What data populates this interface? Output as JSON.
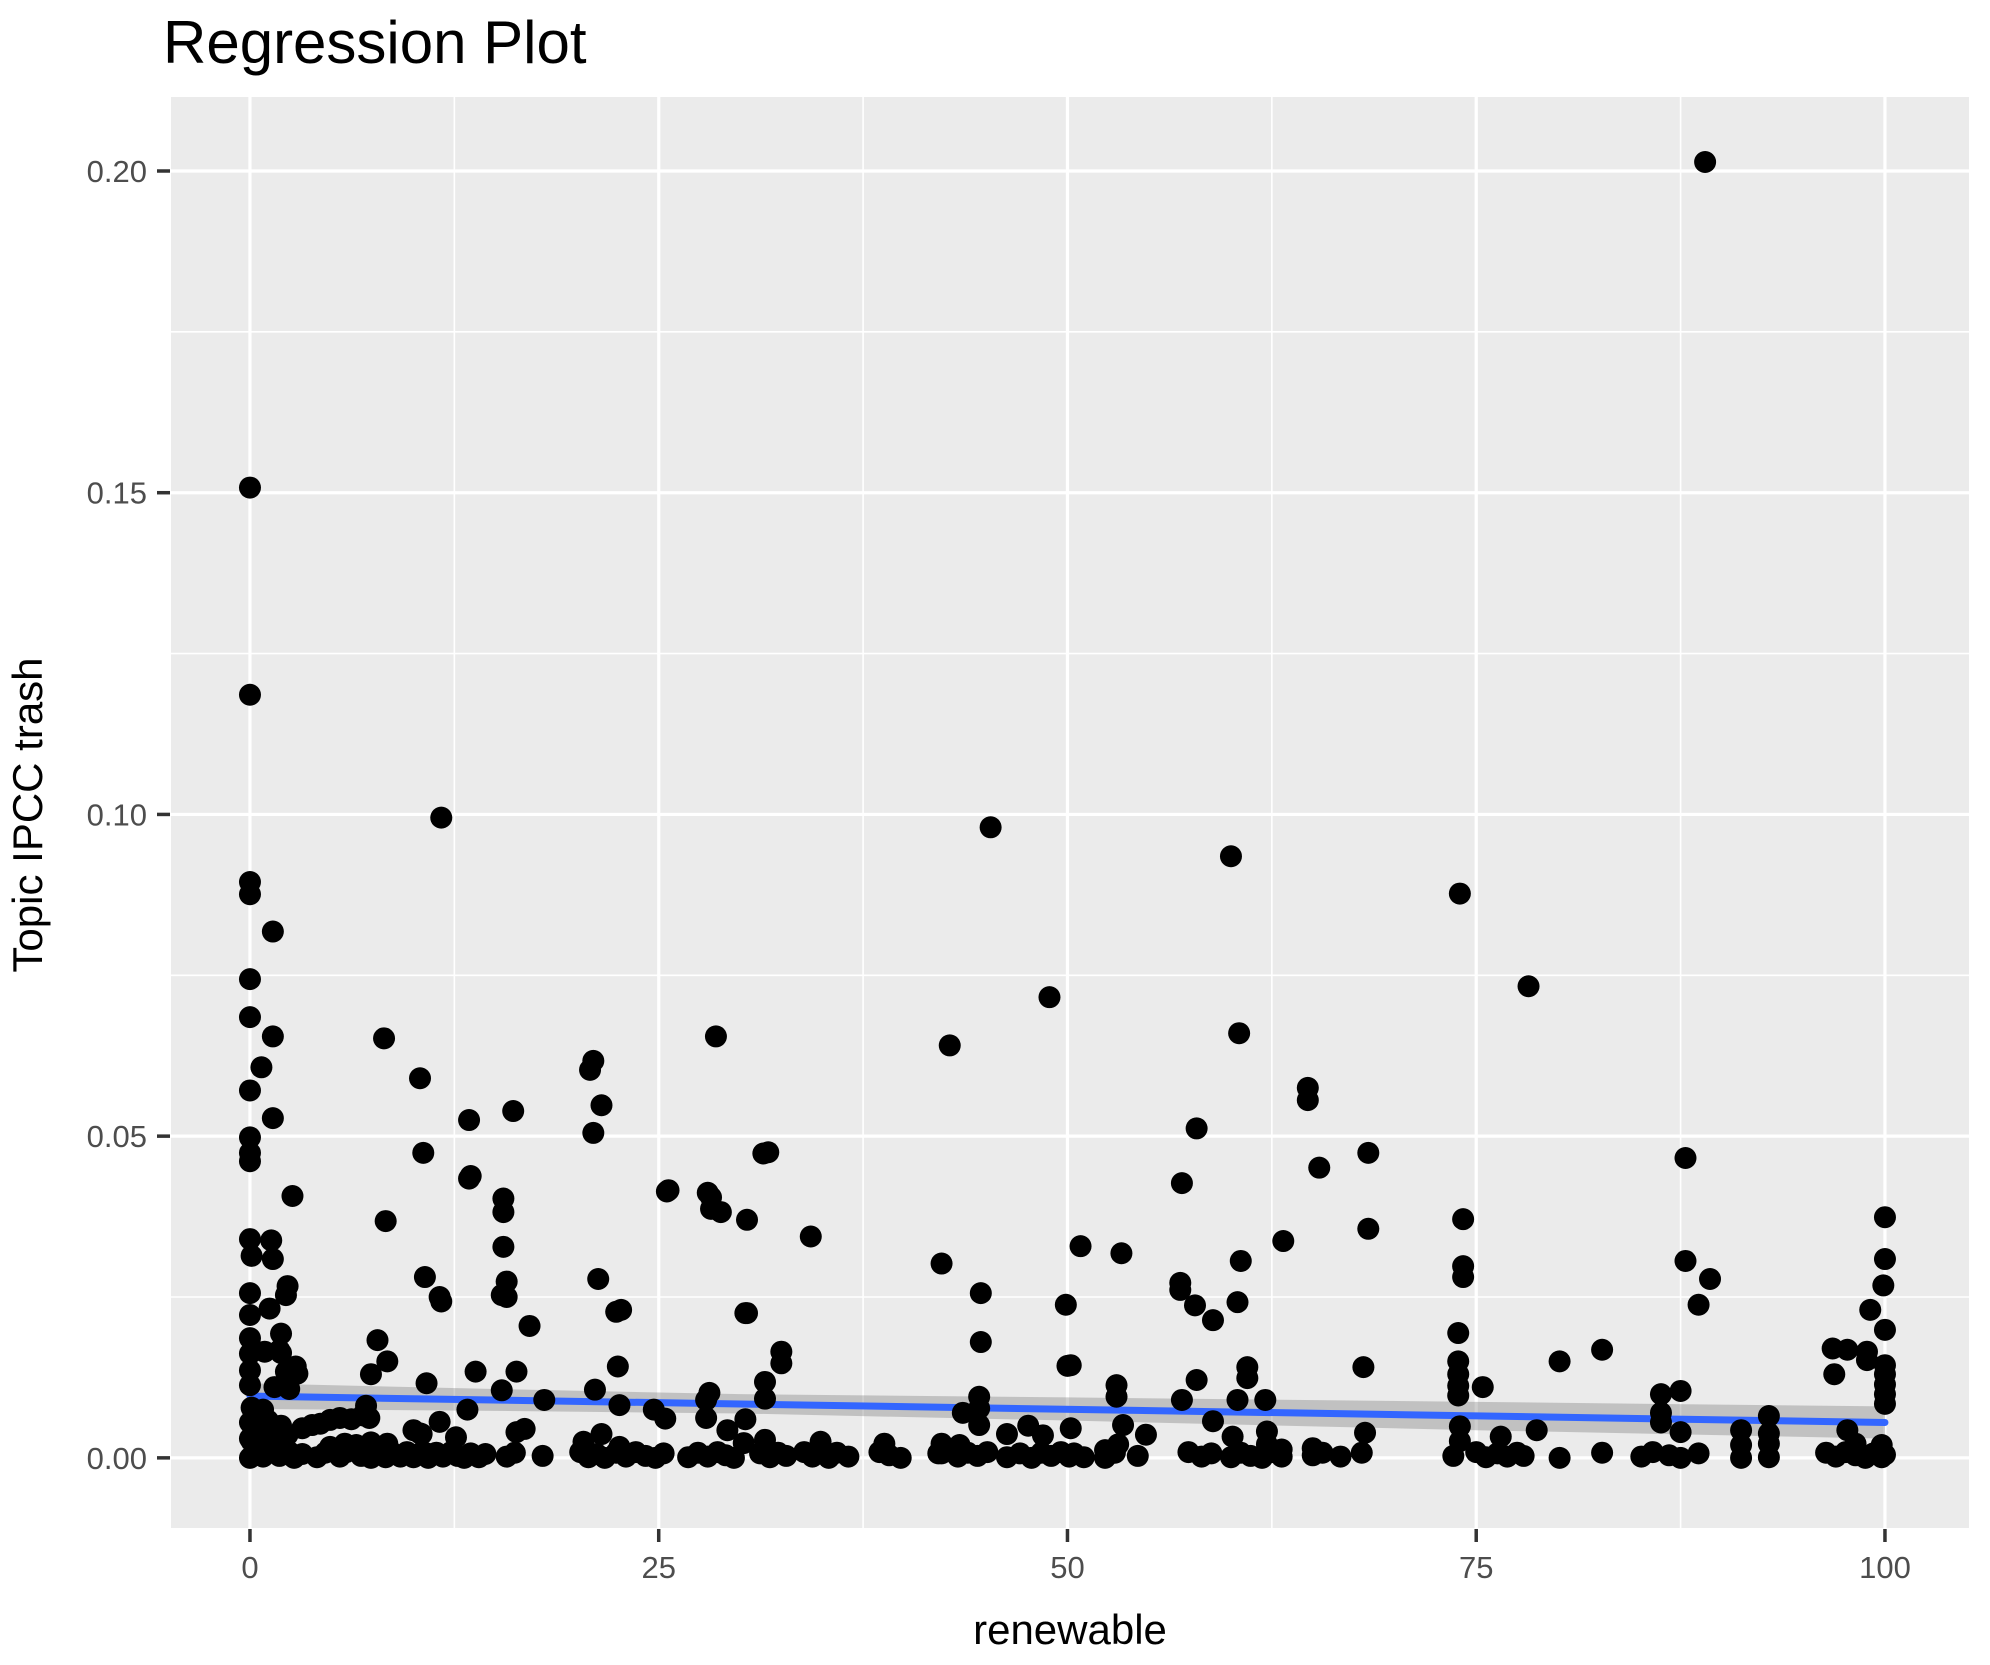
{
  "title": "Regression Plot",
  "x_axis": {
    "label": "renewable",
    "tick_labels": [
      "0",
      "25",
      "50",
      "75",
      "100"
    ],
    "tick_values": [
      0,
      25,
      50,
      75,
      100
    ],
    "minor_ticks": [
      12.5,
      37.5,
      62.5,
      87.5
    ],
    "range": [
      -4.83,
      105.14
    ]
  },
  "y_axis": {
    "label": "Topic IPCC trash",
    "tick_labels": [
      "0.00",
      "0.05",
      "0.10",
      "0.15",
      "0.20"
    ],
    "tick_values": [
      0,
      0.05,
      0.1,
      0.15,
      0.2
    ],
    "minor_ticks": [
      0.025,
      0.075,
      0.125,
      0.175
    ],
    "range": [
      -0.0109,
      0.2115
    ]
  },
  "colors": {
    "panel_background": "#EBEBEB",
    "grid_major": "#FFFFFF",
    "grid_minor": "#FFFFFF",
    "point": "#000000",
    "smooth_line": "#3366FF",
    "ribbon": "rgba(125,125,125,0.38)",
    "tick_label": "#4D4D4D",
    "tick_mark": "#333333",
    "title": "#000000"
  },
  "chart_data": {
    "type": "scatter",
    "title": "Regression Plot",
    "xlabel": "renewable",
    "ylabel": "Topic IPCC trash",
    "xlim": [
      -4.83,
      105.14
    ],
    "ylim": [
      -0.0109,
      0.2115
    ],
    "grid": "on",
    "legend": "none",
    "smooth": {
      "type": "linear",
      "x": [
        0,
        100
      ],
      "y": [
        0.0096,
        0.0055
      ]
    },
    "confidence_band": {
      "x": [
        0,
        15,
        30,
        50,
        75,
        100
      ],
      "upper": [
        0.0116,
        0.0107,
        0.0099,
        0.0094,
        0.0087,
        0.008
      ],
      "lower": [
        0.0076,
        0.0073,
        0.0069,
        0.0058,
        0.0043,
        0.003
      ]
    },
    "points": [
      [
        0,
        0.1508
      ],
      [
        89,
        0.2014
      ],
      [
        0,
        0.1186
      ],
      [
        11.7,
        0.0995
      ],
      [
        45.3,
        0.098
      ],
      [
        60,
        0.0935
      ],
      [
        74,
        0.0877
      ],
      [
        78.2,
        0.0733
      ],
      [
        0,
        0.0895
      ],
      [
        0,
        0.0876
      ],
      [
        1.4,
        0.0818
      ],
      [
        0,
        0.0744
      ],
      [
        48.9,
        0.0716
      ],
      [
        0,
        0.0685
      ],
      [
        1.4,
        0.0655
      ],
      [
        8.2,
        0.0652
      ],
      [
        28.5,
        0.0655
      ],
      [
        60.5,
        0.066
      ],
      [
        42.8,
        0.0641
      ],
      [
        0.7,
        0.0607
      ],
      [
        10.4,
        0.059
      ],
      [
        21,
        0.0617
      ],
      [
        20.8,
        0.0603
      ],
      [
        0,
        0.0571
      ],
      [
        21.5,
        0.0548
      ],
      [
        16.1,
        0.0539
      ],
      [
        13.4,
        0.0525
      ],
      [
        1.4,
        0.0528
      ],
      [
        0,
        0.0498
      ],
      [
        0,
        0.0474
      ],
      [
        0,
        0.0461
      ],
      [
        21,
        0.0505
      ],
      [
        10.6,
        0.0474
      ],
      [
        13.5,
        0.0438
      ],
      [
        31.7,
        0.0475
      ],
      [
        25.6,
        0.0416
      ],
      [
        28.2,
        0.0405
      ],
      [
        28.2,
        0.0387
      ],
      [
        2.6,
        0.0407
      ],
      [
        8.3,
        0.0368
      ],
      [
        31.4,
        0.0473
      ],
      [
        13.4,
        0.0434
      ],
      [
        15.5,
        0.0403
      ],
      [
        15.5,
        0.0382
      ],
      [
        25.5,
        0.0414
      ],
      [
        28,
        0.0412
      ],
      [
        28.8,
        0.0382
      ],
      [
        30.4,
        0.037
      ],
      [
        34.3,
        0.0344
      ],
      [
        42.3,
        0.0302
      ],
      [
        15.5,
        0.0328
      ],
      [
        15.7,
        0.0274
      ],
      [
        15.7,
        0.025
      ],
      [
        11.6,
        0.025
      ],
      [
        17.1,
        0.0205
      ],
      [
        22.7,
        0.023
      ],
      [
        30.4,
        0.0225
      ],
      [
        64.7,
        0.0575
      ],
      [
        64.7,
        0.0556
      ],
      [
        57.9,
        0.0512
      ],
      [
        68.4,
        0.0474
      ],
      [
        65.4,
        0.0451
      ],
      [
        57,
        0.0427
      ],
      [
        87.8,
        0.0466
      ],
      [
        50.8,
        0.0329
      ],
      [
        53.3,
        0.0318
      ],
      [
        63.2,
        0.0337
      ],
      [
        68.4,
        0.0356
      ],
      [
        74.2,
        0.0371
      ],
      [
        74.2,
        0.0298
      ],
      [
        74.2,
        0.0281
      ],
      [
        60.6,
        0.0306
      ],
      [
        56.9,
        0.0272
      ],
      [
        87.8,
        0.0306
      ],
      [
        89.3,
        0.0278
      ],
      [
        100,
        0.0374
      ],
      [
        100,
        0.0309
      ],
      [
        0,
        0.034
      ],
      [
        1.3,
        0.0338
      ],
      [
        0.1,
        0.0314
      ],
      [
        1.4,
        0.0309
      ],
      [
        10.7,
        0.0281
      ],
      [
        21.3,
        0.0278
      ],
      [
        2.3,
        0.0267
      ],
      [
        0,
        0.0256
      ],
      [
        0,
        0.0222
      ],
      [
        1.2,
        0.0232
      ],
      [
        2.2,
        0.0253
      ],
      [
        0,
        0.0186
      ],
      [
        1.9,
        0.0193
      ],
      [
        0,
        0.0162
      ],
      [
        0.9,
        0.0165
      ],
      [
        1.9,
        0.0163
      ],
      [
        0,
        0.0136
      ],
      [
        2.2,
        0.0134
      ],
      [
        2.9,
        0.0131
      ],
      [
        0,
        0.0113
      ],
      [
        1.5,
        0.011
      ],
      [
        2.4,
        0.0107
      ],
      [
        2.8,
        0.0142
      ],
      [
        1.8,
        0.0167
      ],
      [
        7.8,
        0.0183
      ],
      [
        8.4,
        0.015
      ],
      [
        7.4,
        0.013
      ],
      [
        11.7,
        0.0243
      ],
      [
        10.8,
        0.0116
      ],
      [
        13.8,
        0.0134
      ],
      [
        15.4,
        0.0253
      ],
      [
        16.3,
        0.0134
      ],
      [
        22.4,
        0.0227
      ],
      [
        22.5,
        0.0142
      ],
      [
        21.1,
        0.0106
      ],
      [
        18,
        0.009
      ],
      [
        15.4,
        0.0105
      ],
      [
        13.3,
        0.0075
      ],
      [
        30.3,
        0.0225
      ],
      [
        32.5,
        0.0165
      ],
      [
        32.5,
        0.0147
      ],
      [
        31.5,
        0.0118
      ],
      [
        28.1,
        0.0101
      ],
      [
        31.5,
        0.0092
      ],
      [
        44.7,
        0.0256
      ],
      [
        44.7,
        0.018
      ],
      [
        49.9,
        0.0238
      ],
      [
        50,
        0.0143
      ],
      [
        56.9,
        0.0261
      ],
      [
        57.8,
        0.0237
      ],
      [
        58.9,
        0.0214
      ],
      [
        60.4,
        0.0242
      ],
      [
        53,
        0.0113
      ],
      [
        53,
        0.0095
      ],
      [
        57,
        0.009
      ],
      [
        57.9,
        0.0121
      ],
      [
        61,
        0.0141
      ],
      [
        61,
        0.0124
      ],
      [
        60.4,
        0.009
      ],
      [
        62.1,
        0.009
      ],
      [
        68.1,
        0.0141
      ],
      [
        73.9,
        0.0194
      ],
      [
        73.9,
        0.015
      ],
      [
        73.9,
        0.013
      ],
      [
        73.9,
        0.0112
      ],
      [
        73.9,
        0.0097
      ],
      [
        75.4,
        0.011
      ],
      [
        88.6,
        0.0238
      ],
      [
        99.9,
        0.0268
      ],
      [
        99.1,
        0.023
      ],
      [
        100,
        0.0199
      ],
      [
        82.7,
        0.0168
      ],
      [
        80.1,
        0.015
      ],
      [
        96.8,
        0.017
      ],
      [
        97.7,
        0.0168
      ],
      [
        98.9,
        0.0165
      ],
      [
        98.9,
        0.0152
      ],
      [
        100,
        0.0144
      ],
      [
        100,
        0.013
      ],
      [
        100,
        0.0114
      ],
      [
        100,
        0.0099
      ],
      [
        100,
        0.0084
      ],
      [
        96.9,
        0.013
      ],
      [
        86.3,
        0.0099
      ],
      [
        87.5,
        0.0104
      ],
      [
        0.1,
        0.0078
      ],
      [
        0.8,
        0.0075
      ],
      [
        0,
        0.0055
      ],
      [
        0.6,
        0.005
      ],
      [
        1.4,
        0.0048
      ],
      [
        0,
        0.003
      ],
      [
        0.9,
        0.0028
      ],
      [
        1.8,
        0.0026
      ],
      [
        0.3,
        0.001
      ],
      [
        1.1,
        0.0008
      ],
      [
        0.2,
        0.0052
      ],
      [
        1.1,
        0.0058
      ],
      [
        1.9,
        0.005
      ],
      [
        2.3,
        0.0036
      ],
      [
        0.9,
        0.0016
      ],
      [
        0.1,
        0.0026
      ],
      [
        4.3,
        0.0053
      ],
      [
        4.9,
        0.0059
      ],
      [
        3.8,
        0.0051
      ],
      [
        3.2,
        0.0046
      ],
      [
        5.5,
        0.0062
      ],
      [
        6.2,
        0.006
      ],
      [
        7.1,
        0.0081
      ],
      [
        6.9,
        0.0066
      ],
      [
        7.3,
        0.0062
      ],
      [
        4.9,
        0.0017
      ],
      [
        6.5,
        0.002
      ],
      [
        5.8,
        0.0022
      ],
      [
        7.4,
        0.0024
      ],
      [
        8.4,
        0.0022
      ],
      [
        10,
        0.0043
      ],
      [
        10.5,
        0.0037
      ],
      [
        10.8,
        0.0007
      ],
      [
        10.4,
        0.0038
      ],
      [
        11.6,
        0.0056
      ],
      [
        12.6,
        0.0032
      ],
      [
        16.3,
        0.004
      ],
      [
        16.8,
        0.0045
      ],
      [
        20.4,
        0.0025
      ],
      [
        21.5,
        0.0037
      ],
      [
        22.6,
        0.0082
      ],
      [
        22.6,
        0.0017
      ],
      [
        24.7,
        0.0075
      ],
      [
        25.4,
        0.0061
      ],
      [
        27.9,
        0.009
      ],
      [
        27.9,
        0.0062
      ],
      [
        29.2,
        0.0043
      ],
      [
        30.3,
        0.006
      ],
      [
        30.2,
        0.0023
      ],
      [
        31.5,
        0.0028
      ],
      [
        34.9,
        0.0025
      ],
      [
        38.8,
        0.0022
      ],
      [
        42.3,
        0.0022
      ],
      [
        42.3,
        0.0007
      ],
      [
        43.4,
        0.002
      ],
      [
        44.6,
        0.0095
      ],
      [
        44.6,
        0.0077
      ],
      [
        44.6,
        0.0051
      ],
      [
        43.6,
        0.007
      ],
      [
        46.3,
        0.0037
      ],
      [
        47.6,
        0.005
      ],
      [
        48.5,
        0.0035
      ],
      [
        50.2,
        0.0144
      ],
      [
        50.2,
        0.0046
      ],
      [
        53.4,
        0.0051
      ],
      [
        54.8,
        0.0036
      ],
      [
        53.1,
        0.0021
      ],
      [
        58.9,
        0.0057
      ],
      [
        60.1,
        0.0033
      ],
      [
        62.2,
        0.0041
      ],
      [
        62.2,
        0.0021
      ],
      [
        65.6,
        0.0008
      ],
      [
        68.2,
        0.0039
      ],
      [
        74,
        0.0049
      ],
      [
        74,
        0.0026
      ],
      [
        76.5,
        0.0033
      ],
      [
        78.7,
        0.0043
      ],
      [
        86.3,
        0.007
      ],
      [
        86.3,
        0.0055
      ],
      [
        87.5,
        0.004
      ],
      [
        91.2,
        0.0043
      ],
      [
        91.2,
        0.002
      ],
      [
        92.9,
        0.0065
      ],
      [
        92.9,
        0.0038
      ],
      [
        92.9,
        0.0022
      ],
      [
        97.7,
        0.0043
      ],
      [
        98.2,
        0.0022
      ],
      [
        99.8,
        0.002
      ],
      [
        0,
        0
      ],
      [
        0.3,
        0.0008
      ],
      [
        0.8,
        0.0002
      ],
      [
        1.3,
        0.001
      ],
      [
        1.8,
        0.0003
      ],
      [
        2.4,
        0.0009
      ],
      [
        2.7,
        0
      ],
      [
        3.2,
        0.0006
      ],
      [
        4.1,
        0.0001
      ],
      [
        4.6,
        0.0008
      ],
      [
        5.5,
        0.0002
      ],
      [
        5.9,
        0.0009
      ],
      [
        6.8,
        0.0003
      ],
      [
        7.4,
        0
      ],
      [
        7.8,
        0.0007
      ],
      [
        8.3,
        0.0001
      ],
      [
        8.7,
        0.0008
      ],
      [
        9.2,
        0.0002
      ],
      [
        9.6,
        0.0009
      ],
      [
        10,
        0.0001
      ],
      [
        10.4,
        0.0007
      ],
      [
        10.9,
        0
      ],
      [
        11.4,
        0.0008
      ],
      [
        11.8,
        0.0002
      ],
      [
        12.3,
        0.0009
      ],
      [
        12.7,
        0.0003
      ],
      [
        13.1,
        0
      ],
      [
        13.5,
        0.0007
      ],
      [
        14,
        0.0001
      ],
      [
        14.4,
        0.0006
      ],
      [
        15.7,
        0.0002
      ],
      [
        16.2,
        0.0008
      ],
      [
        17.9,
        0.0003
      ],
      [
        20.2,
        0.0009
      ],
      [
        20.7,
        0.0001
      ],
      [
        21.2,
        0.0006
      ],
      [
        21.7,
        0
      ],
      [
        22.4,
        0.0008
      ],
      [
        23,
        0.0002
      ],
      [
        23.6,
        0.0009
      ],
      [
        24.2,
        0.0003
      ],
      [
        24.8,
        0
      ],
      [
        25.3,
        0.0007
      ],
      [
        26.8,
        0.0001
      ],
      [
        27.4,
        0.0008
      ],
      [
        28,
        0.0002
      ],
      [
        28.6,
        0.0009
      ],
      [
        29.1,
        0.0004
      ],
      [
        29.6,
        0
      ],
      [
        31.2,
        0.0007
      ],
      [
        31.8,
        0.0001
      ],
      [
        32.3,
        0.0008
      ],
      [
        32.8,
        0.0003
      ],
      [
        33.9,
        0.0009
      ],
      [
        34.4,
        0.0002
      ],
      [
        34.9,
        0.0007
      ],
      [
        35.4,
        0
      ],
      [
        35.9,
        0.0008
      ],
      [
        36.6,
        0.0002
      ],
      [
        38.5,
        0.0009
      ],
      [
        39.1,
        0.0004
      ],
      [
        39.8,
        0
      ],
      [
        42.1,
        0.0007
      ],
      [
        43.3,
        0.0002
      ],
      [
        43.9,
        0.0008
      ],
      [
        44.5,
        0.0003
      ],
      [
        45.1,
        0.0009
      ],
      [
        46.3,
        0.0001
      ],
      [
        47.1,
        0.0007
      ],
      [
        47.8,
        0
      ],
      [
        48.4,
        0.0008
      ],
      [
        49,
        0.0003
      ],
      [
        49.6,
        0.0009
      ],
      [
        50.1,
        0.0002
      ],
      [
        50.4,
        0.0007
      ],
      [
        51,
        0.0001
      ],
      [
        52.3,
        0.0012
      ],
      [
        52.3,
        0
      ],
      [
        52.9,
        0.0008
      ],
      [
        54.3,
        0.0003
      ],
      [
        57.4,
        0.0009
      ],
      [
        58.2,
        0.0002
      ],
      [
        58.8,
        0.0007
      ],
      [
        60,
        0.0001
      ],
      [
        60.6,
        0.0008
      ],
      [
        61.2,
        0.0003
      ],
      [
        61.9,
        0
      ],
      [
        62.5,
        0.0009
      ],
      [
        63.1,
        0.0013
      ],
      [
        63.1,
        0.0002
      ],
      [
        65,
        0.0015
      ],
      [
        65,
        0.0004
      ],
      [
        66.7,
        0.0002
      ],
      [
        68,
        0.0008
      ],
      [
        73.6,
        0.0003
      ],
      [
        75,
        0.0009
      ],
      [
        75.6,
        0.0001
      ],
      [
        76.3,
        0.0007
      ],
      [
        76.9,
        0.0002
      ],
      [
        77.5,
        0.0008
      ],
      [
        77.9,
        0.0003
      ],
      [
        80.1,
        0
      ],
      [
        82.7,
        0.0008
      ],
      [
        85.1,
        0.0002
      ],
      [
        85.8,
        0.0009
      ],
      [
        86.8,
        0.0004
      ],
      [
        87.5,
        0
      ],
      [
        88.6,
        0.0007
      ],
      [
        91.2,
        0
      ],
      [
        92.9,
        0.0001
      ],
      [
        96.4,
        0.0008
      ],
      [
        97,
        0.0002
      ],
      [
        97.6,
        0.0009
      ],
      [
        98.2,
        0.0004
      ],
      [
        98.8,
        0
      ],
      [
        99.3,
        0.0007
      ],
      [
        99.8,
        0.0001
      ],
      [
        100,
        0.0005
      ]
    ]
  }
}
